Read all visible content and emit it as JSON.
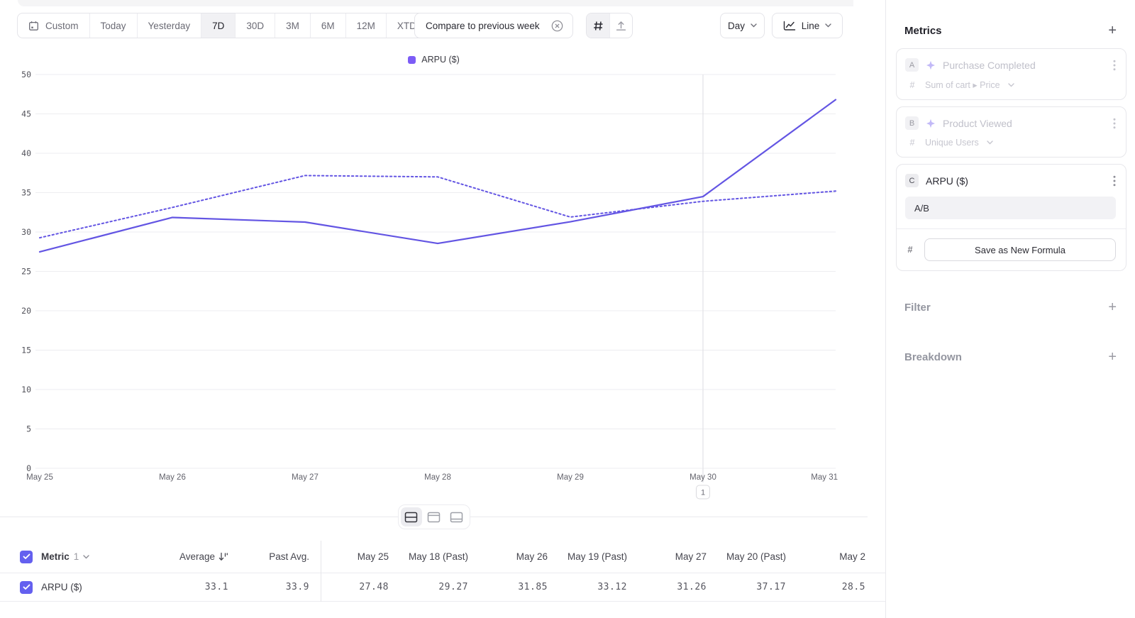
{
  "toolbar": {
    "ranges": [
      "Custom",
      "Today",
      "Yesterday",
      "7D",
      "30D",
      "3M",
      "6M",
      "12M",
      "XTD"
    ],
    "selected_range": "7D",
    "compare_chip": "Compare to previous week",
    "interval": "Day",
    "chart_type": "Line"
  },
  "legend": {
    "label": "ARPU ($)"
  },
  "chart_data": {
    "type": "line",
    "title": "",
    "x": [
      "May 25",
      "May 26",
      "May 27",
      "May 28",
      "May 29",
      "May 30",
      "May 31"
    ],
    "series": [
      {
        "name": "ARPU ($)",
        "style": "solid",
        "color": "#6355e3",
        "values": [
          27.48,
          31.85,
          31.26,
          28.55,
          31.3,
          34.5,
          46.8
        ]
      },
      {
        "name": "ARPU ($) (Past)",
        "style": "dotted",
        "color": "#6355e3",
        "values": [
          29.27,
          33.12,
          37.17,
          37.0,
          31.9,
          33.9,
          35.2
        ]
      }
    ],
    "ylim": [
      0,
      50
    ],
    "ytick_step": 5,
    "grid": true,
    "legend_position": "top-center",
    "annotation": {
      "x": "May 30",
      "x_index": 5,
      "label": "1"
    }
  },
  "table": {
    "metric_label": "Metric",
    "metric_count": "1",
    "columns": [
      "Average",
      "Past Avg.",
      "May 25",
      "May 18 (Past)",
      "May 26",
      "May 19 (Past)",
      "May 27",
      "May 20 (Past)",
      "May 2"
    ],
    "rows": [
      {
        "label": "ARPU ($)",
        "checked": true,
        "values": [
          "33.1",
          "33.9",
          "27.48",
          "29.27",
          "31.85",
          "33.12",
          "31.26",
          "37.17",
          "28.5"
        ]
      }
    ]
  },
  "sidebar": {
    "metrics_title": "Metrics",
    "metrics": [
      {
        "badge": "A",
        "name": "Purchase Completed",
        "measurement": "Sum of cart ▸ Price",
        "state": "inactive"
      },
      {
        "badge": "B",
        "name": "Product Viewed",
        "measurement": "Unique Users",
        "state": "inactive"
      },
      {
        "badge": "C",
        "name": "ARPU ($)",
        "formula": "A/B",
        "action_label": "Save as New Formula",
        "state": "active"
      }
    ],
    "filter_title": "Filter",
    "breakdown_title": "Breakdown"
  },
  "colors": {
    "accent_purple": "#6355e3",
    "legend_swatch": "#7c5cf6",
    "checkbox_purple": "#6460ef",
    "gridline": "#ededf0",
    "annotation_line": "#e3e3e7"
  }
}
